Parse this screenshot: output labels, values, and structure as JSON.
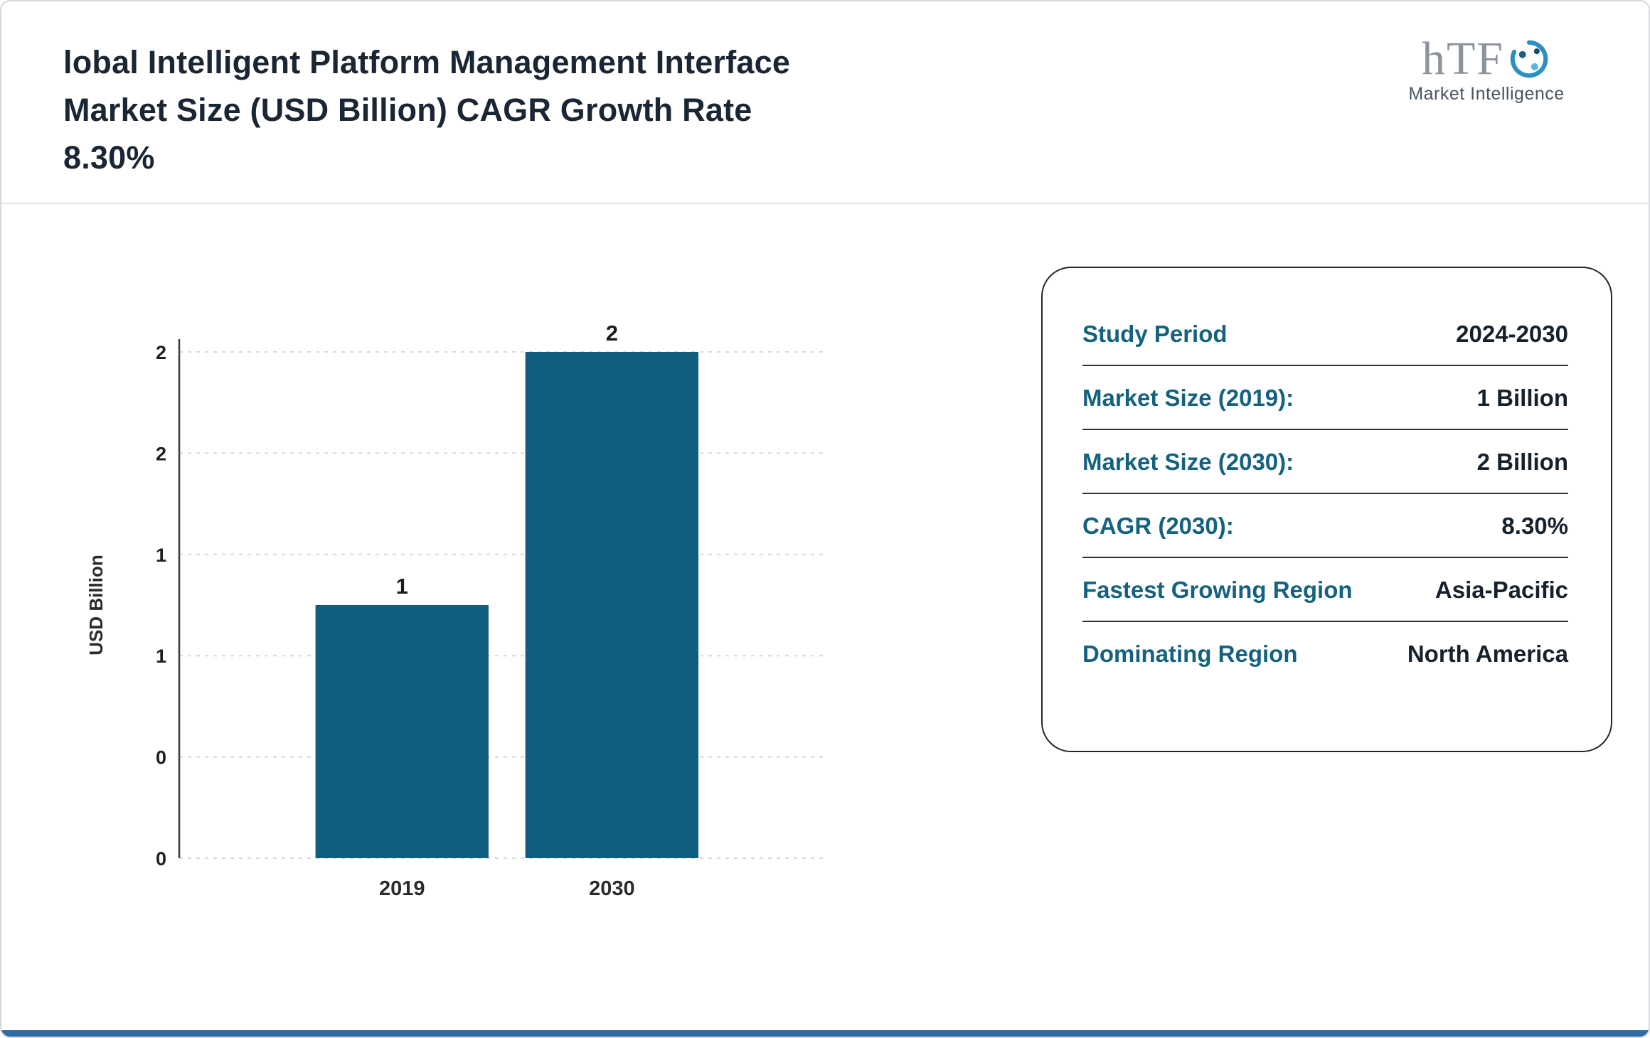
{
  "page": {
    "title_lines": [
      "lobal Intelligent Platform Management Interface",
      "Market Size (USD Billion) CAGR Growth Rate",
      "8.30%"
    ]
  },
  "logo": {
    "text": "hTF",
    "subtitle": "Market Intelligence",
    "icon": "swirl-icon"
  },
  "chart_data": {
    "type": "bar",
    "title": "",
    "categories": [
      "2019",
      "2030"
    ],
    "values": [
      1,
      2
    ],
    "value_labels": [
      "1",
      "2"
    ],
    "xlabel": "",
    "ylabel": "USD Billion",
    "ylim": [
      0,
      2
    ],
    "yticks": [
      0,
      0.4,
      0.8,
      1.2,
      1.6,
      2
    ],
    "ytick_labels": [
      "0",
      "0",
      "1",
      "1",
      "2",
      "2"
    ],
    "grid": "horizontal-dashed",
    "legend": "none",
    "bar_color": "#0f5e7d"
  },
  "info_panel": {
    "rows": [
      {
        "label": "Study Period",
        "value": "2024-2030"
      },
      {
        "label": "Market Size (2019):",
        "value": "1 Billion"
      },
      {
        "label": "Market Size (2030):",
        "value": "2 Billion"
      },
      {
        "label": "CAGR (2030):",
        "value": "8.30%"
      },
      {
        "label": "Fastest Growing Region",
        "value": "Asia-Pacific"
      },
      {
        "label": "Dominating Region",
        "value": "North America"
      }
    ]
  },
  "colors": {
    "teal_label": "#14627f",
    "bar": "#0f5e7d",
    "navy_text": "#16212c",
    "title_text": "#1b2635",
    "bottom_strip": "#2e6ca6",
    "grid_line": "#d8d8d8"
  }
}
